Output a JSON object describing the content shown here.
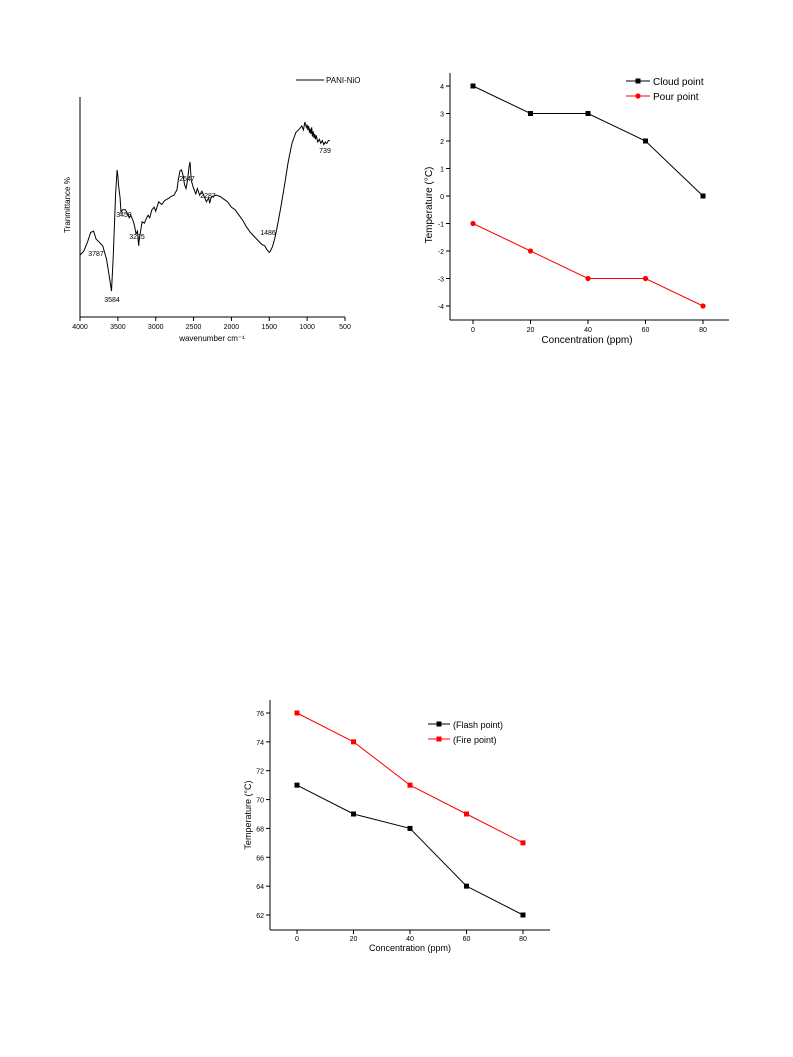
{
  "chart_data": [
    {
      "type": "line",
      "xlabel": "wavenumber cm⁻¹",
      "ylabel": "Tranmittance %",
      "xlim": [
        4000,
        500
      ],
      "xticks": [
        "4000",
        "3500",
        "3000",
        "2500",
        "2000",
        "1500",
        "1000",
        "500"
      ],
      "legend": {
        "position": "top-right",
        "entries": [
          "PANI-NiO"
        ]
      },
      "series": [
        {
          "name": "PANI-NiO",
          "color": "#000000",
          "x": [
            4000,
            3950,
            3900,
            3860,
            3820,
            3787,
            3750,
            3700,
            3650,
            3610,
            3584,
            3560,
            3530,
            3510,
            3500,
            3490,
            3470,
            3458,
            3440,
            3400,
            3370,
            3350,
            3330,
            3300,
            3280,
            3260,
            3240,
            3230,
            3225,
            3220,
            3200,
            3180,
            3150,
            3120,
            3100,
            3080,
            3050,
            3020,
            3000,
            2960,
            2920,
            2880,
            2850,
            2820,
            2800,
            2760,
            2720,
            2700,
            2680,
            2660,
            2640,
            2620,
            2600,
            2580,
            2560,
            2547,
            2530,
            2500,
            2470,
            2450,
            2420,
            2390,
            2360,
            2330,
            2300,
            2287,
            2270,
            2250,
            2200,
            2150,
            2100,
            2050,
            2000,
            1950,
            1900,
            1850,
            1800,
            1750,
            1700,
            1650,
            1600,
            1560,
            1530,
            1500,
            1486,
            1460,
            1430,
            1400,
            1350,
            1300,
            1250,
            1200,
            1150,
            1100,
            1070,
            1050,
            1030,
            1010,
            1000,
            990,
            980,
            970,
            960,
            950,
            940,
            930,
            920,
            910,
            900,
            890,
            880,
            860,
            840,
            820,
            800,
            780,
            760,
            750,
            739,
            720,
            700
          ],
          "y": [
            30,
            33,
            40,
            47,
            48,
            42,
            40,
            37,
            27,
            13,
            3,
            30,
            76,
            94,
            89,
            82,
            73,
            62,
            64,
            64,
            61,
            58,
            60,
            56,
            52,
            46,
            48,
            40,
            37,
            41,
            48,
            55,
            54,
            58,
            60,
            58,
            64,
            66,
            63,
            70,
            68,
            71,
            72,
            73,
            74,
            75,
            79,
            87,
            93,
            94,
            90,
            83,
            80,
            86,
            96,
            100,
            86,
            80,
            76,
            80,
            75,
            78,
            74,
            70,
            73,
            69,
            73,
            74,
            75,
            74,
            72,
            70,
            66,
            64,
            60,
            56,
            51,
            47,
            44,
            41,
            38,
            37,
            34,
            32,
            33,
            36,
            42,
            50,
            65,
            82,
            100,
            114,
            122,
            125,
            127,
            124,
            130,
            126,
            128,
            124,
            127,
            122,
            125,
            121,
            126,
            119,
            123,
            118,
            121,
            117,
            120,
            115,
            117,
            114,
            116,
            113,
            115,
            114,
            114,
            116,
            116
          ]
        }
      ],
      "annotations": [
        "3787",
        "3584",
        "3458",
        "3225",
        "2547",
        "2287",
        "1486",
        "739"
      ]
    },
    {
      "type": "line",
      "xlabel": "Concentration (ppm)",
      "ylabel": "Temperature (°C)",
      "xlim": [
        -10,
        90
      ],
      "ylim": [
        -4.5,
        4.3
      ],
      "xticks": [
        0,
        20,
        40,
        60,
        80
      ],
      "yticks": [
        -4,
        -3,
        -2,
        -1,
        0,
        1,
        2,
        3,
        4
      ],
      "legend": {
        "position": "top-right",
        "entries": [
          "Cloud point",
          "Pour point"
        ]
      },
      "categories": [
        0,
        20,
        40,
        60,
        80
      ],
      "series": [
        {
          "name": "Cloud point",
          "color": "#000000",
          "marker": "square",
          "values": [
            4,
            3,
            3,
            2,
            0
          ]
        },
        {
          "name": "Pour point",
          "color": "#ff0000",
          "marker": "circle",
          "values": [
            -1,
            -2,
            -3,
            -3,
            -4
          ]
        }
      ]
    },
    {
      "type": "line",
      "xlabel": "Concentration (ppm)",
      "ylabel": "Temperature (°C)",
      "xlim": [
        -10,
        90
      ],
      "ylim": [
        61,
        77
      ],
      "xticks": [
        0,
        20,
        40,
        60,
        80
      ],
      "yticks": [
        62,
        64,
        66,
        68,
        70,
        72,
        74,
        76
      ],
      "legend": {
        "position": "top-right",
        "entries": [
          "(Flash point)",
          "(Fire point)"
        ]
      },
      "categories": [
        0,
        20,
        40,
        60,
        80
      ],
      "series": [
        {
          "name": "(Flash point)",
          "color": "#000000",
          "marker": "square",
          "values": [
            71,
            69,
            68,
            64,
            62
          ]
        },
        {
          "name": "(Fire point)",
          "color": "#ff0000",
          "marker": "square",
          "values": [
            76,
            74,
            71,
            69,
            67
          ]
        }
      ]
    }
  ]
}
